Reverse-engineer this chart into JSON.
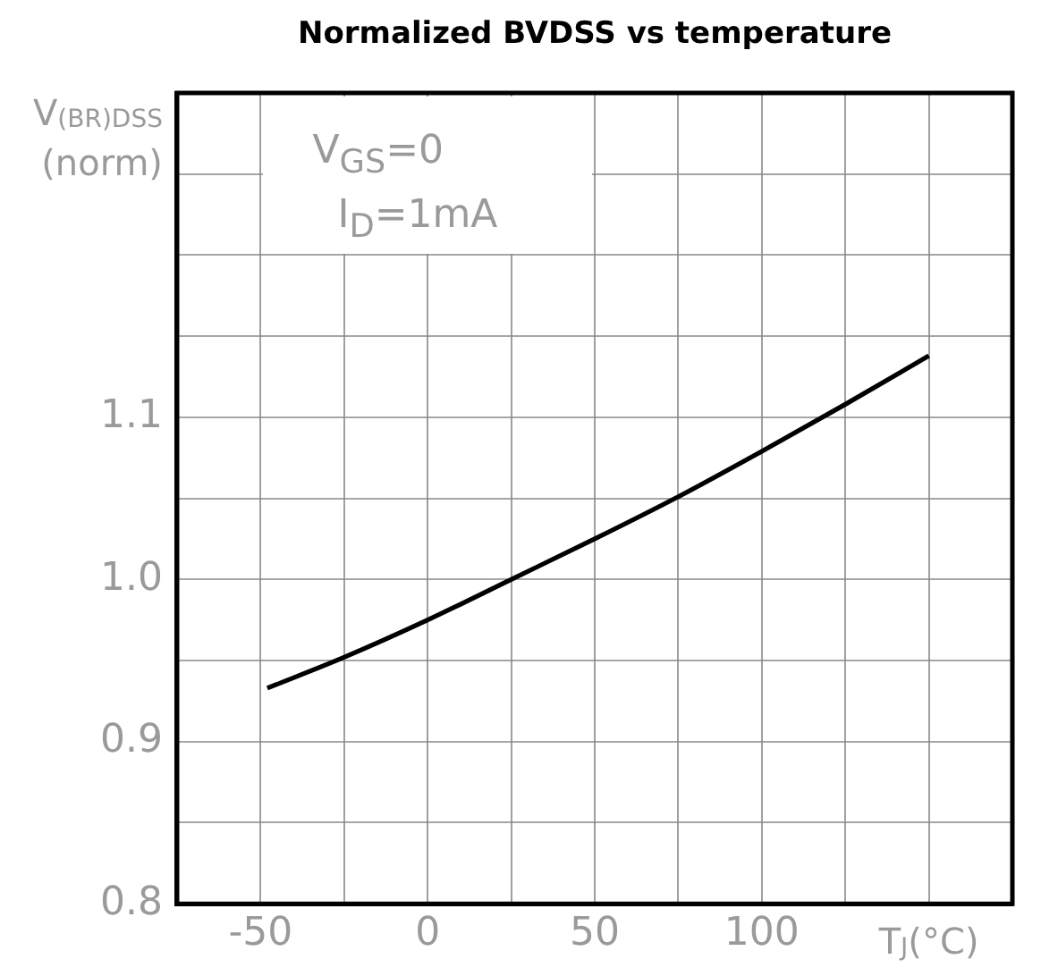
{
  "chart_data": {
    "type": "line",
    "title": "Normalized BVDSS vs temperature",
    "ylabel": "V$_{(BR)DSS}$ (norm)",
    "xlabel": "T$_{J}$(°C)",
    "annotations": [
      "V$_{GS}$=0",
      "I$_{D}$=1mA"
    ],
    "x": [
      -48,
      -25,
      0,
      25,
      50,
      75,
      100,
      125,
      150
    ],
    "series": [
      {
        "color": "#000000",
        "values": [
          0.933,
          0.952,
          0.975,
          1.0,
          1.025,
          1.051,
          1.079,
          1.108,
          1.138
        ]
      }
    ],
    "xlim": [
      -75,
      175
    ],
    "xticks": [
      -50,
      {
        "value": -25,
        "label": null
      },
      0,
      {
        "value": 25,
        "label": null
      },
      50,
      {
        "value": 75,
        "label": null
      },
      100,
      {
        "value": 125,
        "label": null
      },
      {
        "value": 150,
        "label": null
      }
    ],
    "ylim": [
      0.8,
      1.3
    ],
    "yticks": [
      0.8,
      {
        "value": 0.85,
        "label": null
      },
      0.9,
      {
        "value": 0.95,
        "label": null
      },
      {
        "value": 1,
        "label": "1.0"
      },
      {
        "value": 1.05,
        "label": null
      },
      1.1,
      {
        "value": 1.15,
        "label": null
      },
      {
        "value": 1.2,
        "label": null
      },
      {
        "value": 1.25,
        "label": null
      }
    ],
    "grid": true,
    "legend": false,
    "marker": "none",
    "line_style": "solid"
  }
}
